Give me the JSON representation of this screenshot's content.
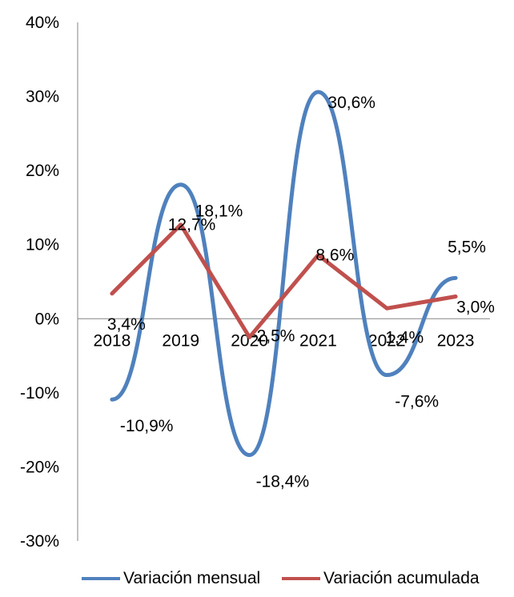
{
  "chart_data": {
    "type": "line",
    "categories": [
      "2018",
      "2019",
      "2020",
      "2021",
      "2022",
      "2023"
    ],
    "ylim": [
      -30,
      40
    ],
    "yticks": [
      40,
      30,
      20,
      10,
      0,
      -10,
      -20,
      -30
    ],
    "ytick_labels": [
      "40%",
      "30%",
      "20%",
      "10%",
      "0%",
      "-10%",
      "-20%",
      "-30%"
    ],
    "smooth_series": "Variación mensual",
    "series": [
      {
        "name": "Variación mensual",
        "color": "#4F81BD",
        "values": [
          -10.9,
          18.1,
          -18.4,
          30.6,
          -7.6,
          5.5
        ],
        "labels": [
          "-10,9%",
          "18,1%",
          "-18,4%",
          "30,6%",
          "-7,6%",
          "5,5%"
        ]
      },
      {
        "name": "Variación acumulada",
        "color": "#C0504D",
        "values": [
          3.4,
          12.7,
          -2.5,
          8.6,
          1.4,
          3.0
        ],
        "labels": [
          "3,4%",
          "12,7%",
          "-2,5%",
          "8,6%",
          "1,4%",
          "3,0%"
        ]
      }
    ]
  }
}
